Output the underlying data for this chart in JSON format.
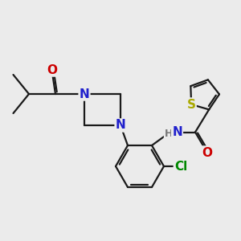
{
  "bg_color": "#ebebeb",
  "bond_color": "#1a1a1a",
  "bond_width": 1.6,
  "atom_colors": {
    "N": "#2020cc",
    "O": "#cc0000",
    "S": "#aaaa00",
    "Cl": "#008800",
    "H": "#777777",
    "C": "#1a1a1a"
  },
  "font_size_atom": 11,
  "font_size_small": 9
}
